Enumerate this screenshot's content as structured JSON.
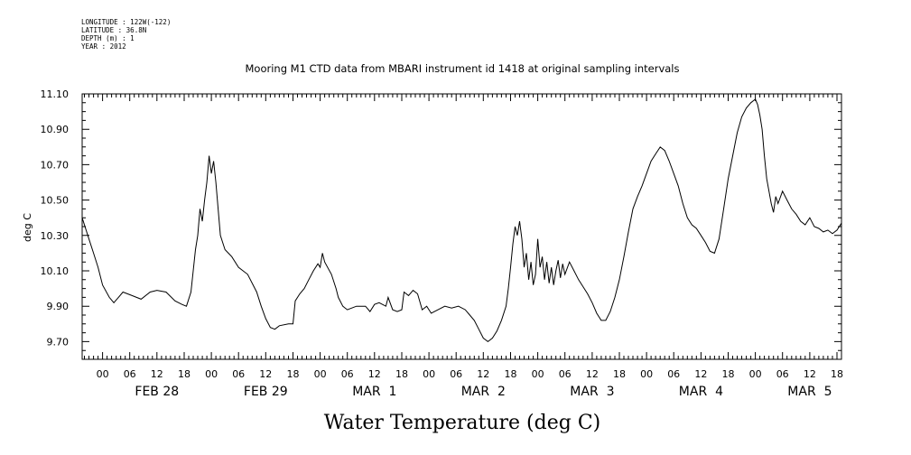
{
  "meta": {
    "longitude": "LONGITUDE : 122W(-122)",
    "latitude": "LATITUDE : 36.8N",
    "depth": "DEPTH (m) : 1",
    "year": "YEAR : 2012"
  },
  "chart_data": {
    "type": "line",
    "title": "Mooring M1 CTD data from MBARI instrument id 1418 at original sampling intervals",
    "xlabel": "Water Temperature (deg C)",
    "ylabel": "deg C",
    "ylim": [
      9.6,
      11.1
    ],
    "yticks": [
      {
        "value": 9.7,
        "label": "9.70"
      },
      {
        "value": 9.9,
        "label": "9.90"
      },
      {
        "value": 10.1,
        "label": "10.10"
      },
      {
        "value": 10.3,
        "label": "10.30"
      },
      {
        "value": 10.5,
        "label": "10.50"
      },
      {
        "value": 10.7,
        "label": "10.70"
      },
      {
        "value": 10.9,
        "label": "10.90"
      },
      {
        "value": 11.1,
        "label": "11.10"
      }
    ],
    "xlim": [
      "2012-02-27T19:30",
      "2012-03-05T19:00"
    ],
    "xticks": [
      {
        "time": "2012-02-28T00:00",
        "label": "00"
      },
      {
        "time": "2012-02-28T06:00",
        "label": "06"
      },
      {
        "time": "2012-02-28T12:00",
        "label": "12"
      },
      {
        "time": "2012-02-28T18:00",
        "label": "18"
      },
      {
        "time": "2012-02-29T00:00",
        "label": "00"
      },
      {
        "time": "2012-02-29T06:00",
        "label": "06"
      },
      {
        "time": "2012-02-29T12:00",
        "label": "12"
      },
      {
        "time": "2012-02-29T18:00",
        "label": "18"
      },
      {
        "time": "2012-03-01T00:00",
        "label": "00"
      },
      {
        "time": "2012-03-01T06:00",
        "label": "06"
      },
      {
        "time": "2012-03-01T12:00",
        "label": "12"
      },
      {
        "time": "2012-03-01T18:00",
        "label": "18"
      },
      {
        "time": "2012-03-02T00:00",
        "label": "00"
      },
      {
        "time": "2012-03-02T06:00",
        "label": "06"
      },
      {
        "time": "2012-03-02T12:00",
        "label": "12"
      },
      {
        "time": "2012-03-02T18:00",
        "label": "18"
      },
      {
        "time": "2012-03-03T00:00",
        "label": "00"
      },
      {
        "time": "2012-03-03T06:00",
        "label": "06"
      },
      {
        "time": "2012-03-03T12:00",
        "label": "12"
      },
      {
        "time": "2012-03-03T18:00",
        "label": "18"
      },
      {
        "time": "2012-03-04T00:00",
        "label": "00"
      },
      {
        "time": "2012-03-04T06:00",
        "label": "06"
      },
      {
        "time": "2012-03-04T12:00",
        "label": "12"
      },
      {
        "time": "2012-03-04T18:00",
        "label": "18"
      },
      {
        "time": "2012-03-05T00:00",
        "label": "00"
      },
      {
        "time": "2012-03-05T06:00",
        "label": "06"
      },
      {
        "time": "2012-03-05T12:00",
        "label": "12"
      },
      {
        "time": "2012-03-05T18:00",
        "label": "18"
      }
    ],
    "date_labels": [
      {
        "time": "2012-02-28T12:00",
        "label": "FEB 28"
      },
      {
        "time": "2012-02-29T12:00",
        "label": "FEB 29"
      },
      {
        "time": "2012-03-01T12:00",
        "label": "MAR  1"
      },
      {
        "time": "2012-03-02T12:00",
        "label": "MAR  2"
      },
      {
        "time": "2012-03-03T12:00",
        "label": "MAR  3"
      },
      {
        "time": "2012-03-04T12:00",
        "label": "MAR  4"
      },
      {
        "time": "2012-03-05T12:00",
        "label": "MAR  5"
      }
    ],
    "series": [
      {
        "points": [
          [
            "2012-02-27T19:30",
            10.4
          ],
          [
            "2012-02-27T21:00",
            10.28
          ],
          [
            "2012-02-27T22:00",
            10.2
          ],
          [
            "2012-02-27T23:00",
            10.12
          ],
          [
            "2012-02-28T00:00",
            10.02
          ],
          [
            "2012-02-28T01:30",
            9.95
          ],
          [
            "2012-02-28T02:30",
            9.92
          ],
          [
            "2012-02-28T03:30",
            9.95
          ],
          [
            "2012-02-28T04:30",
            9.98
          ],
          [
            "2012-02-28T06:30",
            9.96
          ],
          [
            "2012-02-28T08:30",
            9.94
          ],
          [
            "2012-02-28T10:30",
            9.98
          ],
          [
            "2012-02-28T12:00",
            9.99
          ],
          [
            "2012-02-28T14:00",
            9.98
          ],
          [
            "2012-02-28T16:00",
            9.93
          ],
          [
            "2012-02-28T17:30",
            9.91
          ],
          [
            "2012-02-28T18:30",
            9.9
          ],
          [
            "2012-02-28T19:30",
            9.98
          ],
          [
            "2012-02-28T20:00",
            10.1
          ],
          [
            "2012-02-28T20:30",
            10.22
          ],
          [
            "2012-02-28T21:00",
            10.3
          ],
          [
            "2012-02-28T21:30",
            10.45
          ],
          [
            "2012-02-28T22:00",
            10.38
          ],
          [
            "2012-02-28T22:30",
            10.5
          ],
          [
            "2012-02-28T23:00",
            10.6
          ],
          [
            "2012-02-28T23:30",
            10.75
          ],
          [
            "2012-02-29T00:00",
            10.65
          ],
          [
            "2012-02-29T00:30",
            10.72
          ],
          [
            "2012-02-29T01:00",
            10.6
          ],
          [
            "2012-02-29T01:30",
            10.45
          ],
          [
            "2012-02-29T02:00",
            10.3
          ],
          [
            "2012-02-29T03:00",
            10.22
          ],
          [
            "2012-02-29T04:30",
            10.18
          ],
          [
            "2012-02-29T06:00",
            10.12
          ],
          [
            "2012-02-29T08:00",
            10.08
          ],
          [
            "2012-02-29T10:00",
            9.98
          ],
          [
            "2012-02-29T11:00",
            9.9
          ],
          [
            "2012-02-29T12:00",
            9.83
          ],
          [
            "2012-02-29T13:00",
            9.78
          ],
          [
            "2012-02-29T14:00",
            9.77
          ],
          [
            "2012-02-29T15:00",
            9.79
          ],
          [
            "2012-02-29T17:00",
            9.8
          ],
          [
            "2012-02-29T18:00",
            9.8
          ],
          [
            "2012-02-29T18:30",
            9.93
          ],
          [
            "2012-02-29T19:30",
            9.97
          ],
          [
            "2012-02-29T20:30",
            10.0
          ],
          [
            "2012-02-29T21:30",
            10.05
          ],
          [
            "2012-02-29T22:30",
            10.1
          ],
          [
            "2012-02-29T23:30",
            10.14
          ],
          [
            "2012-03-01T00:00",
            10.12
          ],
          [
            "2012-03-01T00:30",
            10.2
          ],
          [
            "2012-03-01T01:00",
            10.15
          ],
          [
            "2012-03-01T02:30",
            10.08
          ],
          [
            "2012-03-01T03:30",
            10.0
          ],
          [
            "2012-03-01T04:00",
            9.95
          ],
          [
            "2012-03-01T05:00",
            9.9
          ],
          [
            "2012-03-01T06:00",
            9.88
          ],
          [
            "2012-03-01T08:00",
            9.9
          ],
          [
            "2012-03-01T10:00",
            9.9
          ],
          [
            "2012-03-01T11:00",
            9.87
          ],
          [
            "2012-03-01T12:00",
            9.91
          ],
          [
            "2012-03-01T13:00",
            9.92
          ],
          [
            "2012-03-01T14:30",
            9.9
          ],
          [
            "2012-03-01T15:00",
            9.95
          ],
          [
            "2012-03-01T16:00",
            9.88
          ],
          [
            "2012-03-01T17:00",
            9.87
          ],
          [
            "2012-03-01T18:00",
            9.88
          ],
          [
            "2012-03-01T18:30",
            9.98
          ],
          [
            "2012-03-01T19:30",
            9.96
          ],
          [
            "2012-03-01T20:30",
            9.99
          ],
          [
            "2012-03-01T21:30",
            9.97
          ],
          [
            "2012-03-01T22:30",
            9.88
          ],
          [
            "2012-03-01T23:30",
            9.9
          ],
          [
            "2012-03-02T00:30",
            9.86
          ],
          [
            "2012-03-02T02:00",
            9.88
          ],
          [
            "2012-03-02T03:30",
            9.9
          ],
          [
            "2012-03-02T05:00",
            9.89
          ],
          [
            "2012-03-02T06:30",
            9.9
          ],
          [
            "2012-03-02T08:00",
            9.88
          ],
          [
            "2012-03-02T09:00",
            9.85
          ],
          [
            "2012-03-02T10:00",
            9.82
          ],
          [
            "2012-03-02T11:00",
            9.77
          ],
          [
            "2012-03-02T12:00",
            9.72
          ],
          [
            "2012-03-02T13:00",
            9.7
          ],
          [
            "2012-03-02T14:00",
            9.72
          ],
          [
            "2012-03-02T15:00",
            9.76
          ],
          [
            "2012-03-02T16:00",
            9.82
          ],
          [
            "2012-03-02T17:00",
            9.9
          ],
          [
            "2012-03-02T17:30",
            10.0
          ],
          [
            "2012-03-02T18:00",
            10.12
          ],
          [
            "2012-03-02T18:30",
            10.25
          ],
          [
            "2012-03-02T19:00",
            10.35
          ],
          [
            "2012-03-02T19:30",
            10.3
          ],
          [
            "2012-03-02T20:00",
            10.38
          ],
          [
            "2012-03-02T20:30",
            10.28
          ],
          [
            "2012-03-02T21:00",
            10.12
          ],
          [
            "2012-03-02T21:30",
            10.2
          ],
          [
            "2012-03-02T22:00",
            10.05
          ],
          [
            "2012-03-02T22:30",
            10.15
          ],
          [
            "2012-03-02T23:00",
            10.02
          ],
          [
            "2012-03-02T23:30",
            10.08
          ],
          [
            "2012-03-03T00:00",
            10.28
          ],
          [
            "2012-03-03T00:30",
            10.12
          ],
          [
            "2012-03-03T01:00",
            10.18
          ],
          [
            "2012-03-03T01:30",
            10.05
          ],
          [
            "2012-03-03T02:00",
            10.15
          ],
          [
            "2012-03-03T02:30",
            10.03
          ],
          [
            "2012-03-03T03:00",
            10.12
          ],
          [
            "2012-03-03T03:30",
            10.02
          ],
          [
            "2012-03-03T04:00",
            10.1
          ],
          [
            "2012-03-03T04:30",
            10.16
          ],
          [
            "2012-03-03T05:00",
            10.06
          ],
          [
            "2012-03-03T05:30",
            10.14
          ],
          [
            "2012-03-03T06:00",
            10.08
          ],
          [
            "2012-03-03T07:00",
            10.15
          ],
          [
            "2012-03-03T08:00",
            10.1
          ],
          [
            "2012-03-03T09:00",
            10.05
          ],
          [
            "2012-03-03T10:00",
            10.01
          ],
          [
            "2012-03-03T11:00",
            9.97
          ],
          [
            "2012-03-03T12:00",
            9.92
          ],
          [
            "2012-03-03T13:00",
            9.86
          ],
          [
            "2012-03-03T14:00",
            9.82
          ],
          [
            "2012-03-03T15:00",
            9.82
          ],
          [
            "2012-03-03T16:00",
            9.87
          ],
          [
            "2012-03-03T17:00",
            9.95
          ],
          [
            "2012-03-03T18:00",
            10.05
          ],
          [
            "2012-03-03T19:00",
            10.18
          ],
          [
            "2012-03-03T20:00",
            10.32
          ],
          [
            "2012-03-03T21:00",
            10.45
          ],
          [
            "2012-03-03T22:00",
            10.52
          ],
          [
            "2012-03-03T23:00",
            10.58
          ],
          [
            "2012-03-04T00:00",
            10.65
          ],
          [
            "2012-03-04T01:00",
            10.72
          ],
          [
            "2012-03-04T02:00",
            10.76
          ],
          [
            "2012-03-04T03:00",
            10.8
          ],
          [
            "2012-03-04T04:00",
            10.78
          ],
          [
            "2012-03-04T05:00",
            10.72
          ],
          [
            "2012-03-04T06:00",
            10.65
          ],
          [
            "2012-03-04T07:00",
            10.58
          ],
          [
            "2012-03-04T08:00",
            10.48
          ],
          [
            "2012-03-04T09:00",
            10.4
          ],
          [
            "2012-03-04T10:00",
            10.36
          ],
          [
            "2012-03-04T11:00",
            10.34
          ],
          [
            "2012-03-04T12:00",
            10.3
          ],
          [
            "2012-03-04T13:00",
            10.26
          ],
          [
            "2012-03-04T14:00",
            10.21
          ],
          [
            "2012-03-04T15:00",
            10.2
          ],
          [
            "2012-03-04T16:00",
            10.28
          ],
          [
            "2012-03-04T17:00",
            10.45
          ],
          [
            "2012-03-04T18:00",
            10.62
          ],
          [
            "2012-03-04T19:00",
            10.75
          ],
          [
            "2012-03-04T20:00",
            10.88
          ],
          [
            "2012-03-04T21:00",
            10.97
          ],
          [
            "2012-03-04T22:00",
            11.02
          ],
          [
            "2012-03-04T23:00",
            11.05
          ],
          [
            "2012-03-05T00:00",
            11.07
          ],
          [
            "2012-03-05T00:30",
            11.04
          ],
          [
            "2012-03-05T01:00",
            10.98
          ],
          [
            "2012-03-05T01:30",
            10.9
          ],
          [
            "2012-03-05T02:00",
            10.75
          ],
          [
            "2012-03-05T02:30",
            10.62
          ],
          [
            "2012-03-05T03:00",
            10.55
          ],
          [
            "2012-03-05T03:30",
            10.48
          ],
          [
            "2012-03-05T04:00",
            10.43
          ],
          [
            "2012-03-05T04:30",
            10.52
          ],
          [
            "2012-03-05T05:00",
            10.48
          ],
          [
            "2012-03-05T06:00",
            10.55
          ],
          [
            "2012-03-05T07:00",
            10.5
          ],
          [
            "2012-03-05T08:00",
            10.45
          ],
          [
            "2012-03-05T09:00",
            10.42
          ],
          [
            "2012-03-05T10:00",
            10.38
          ],
          [
            "2012-03-05T11:00",
            10.36
          ],
          [
            "2012-03-05T12:00",
            10.4
          ],
          [
            "2012-03-05T13:00",
            10.35
          ],
          [
            "2012-03-05T14:00",
            10.34
          ],
          [
            "2012-03-05T15:00",
            10.32
          ],
          [
            "2012-03-05T16:00",
            10.33
          ],
          [
            "2012-03-05T17:00",
            10.31
          ],
          [
            "2012-03-05T18:00",
            10.33
          ],
          [
            "2012-03-05T19:00",
            10.37
          ]
        ]
      }
    ]
  }
}
